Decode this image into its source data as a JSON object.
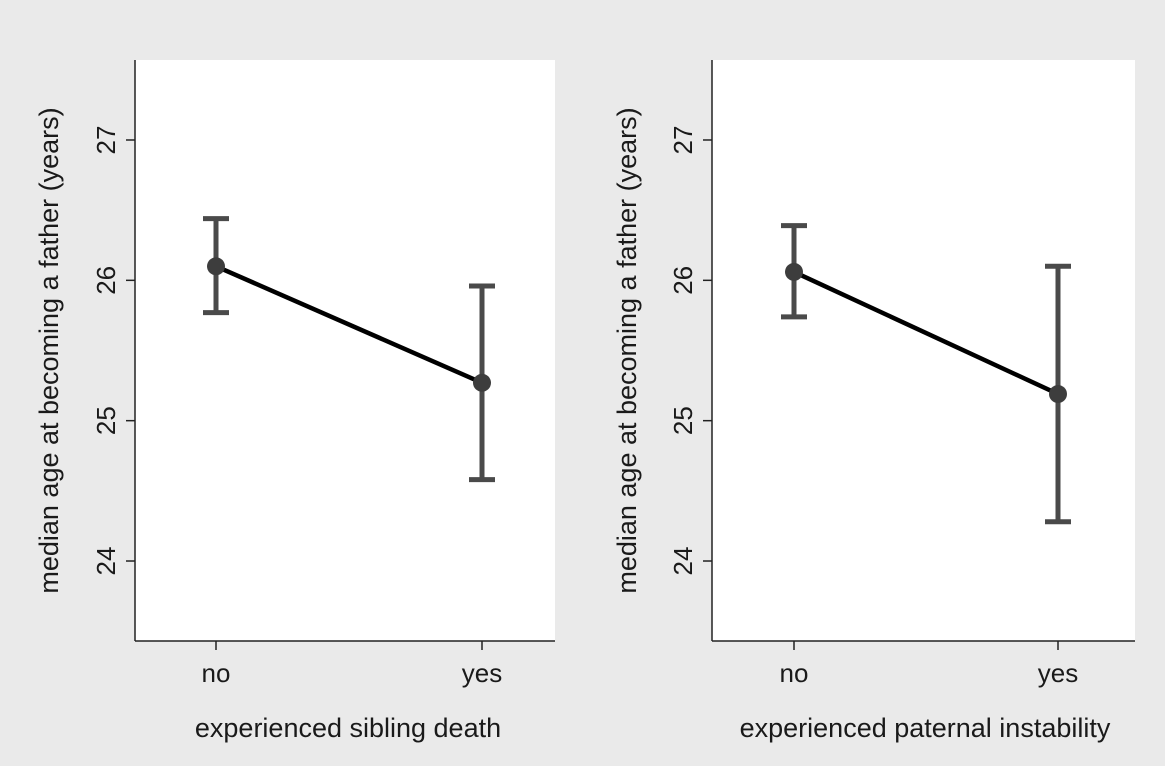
{
  "chart_data": [
    {
      "type": "line",
      "categories": [
        "no",
        "yes"
      ],
      "values": [
        26.1,
        25.27
      ],
      "error_low": [
        25.77,
        24.58
      ],
      "error_high": [
        26.44,
        25.96
      ],
      "xlabel": "experienced sibling death",
      "ylabel": "median age at becoming a father (years)",
      "yticks": [
        24,
        25,
        26,
        27
      ],
      "ylim": [
        23.43,
        27.57
      ],
      "grid": false,
      "colors": {
        "line": "#000000",
        "marker": "#3d3d3d",
        "errorbar": "#4a4a4a",
        "background": "#ffffff",
        "frame": "#eaeaea"
      }
    },
    {
      "type": "line",
      "categories": [
        "no",
        "yes"
      ],
      "values": [
        26.06,
        25.19
      ],
      "error_low": [
        25.74,
        24.28
      ],
      "error_high": [
        26.39,
        26.1
      ],
      "xlabel": "experienced paternal instability",
      "ylabel": "median age at becoming a father (years)",
      "yticks": [
        24,
        25,
        26,
        27
      ],
      "ylim": [
        23.43,
        27.57
      ],
      "grid": false,
      "colors": {
        "line": "#000000",
        "marker": "#3d3d3d",
        "errorbar": "#4a4a4a",
        "background": "#ffffff",
        "frame": "#eaeaea"
      }
    }
  ]
}
